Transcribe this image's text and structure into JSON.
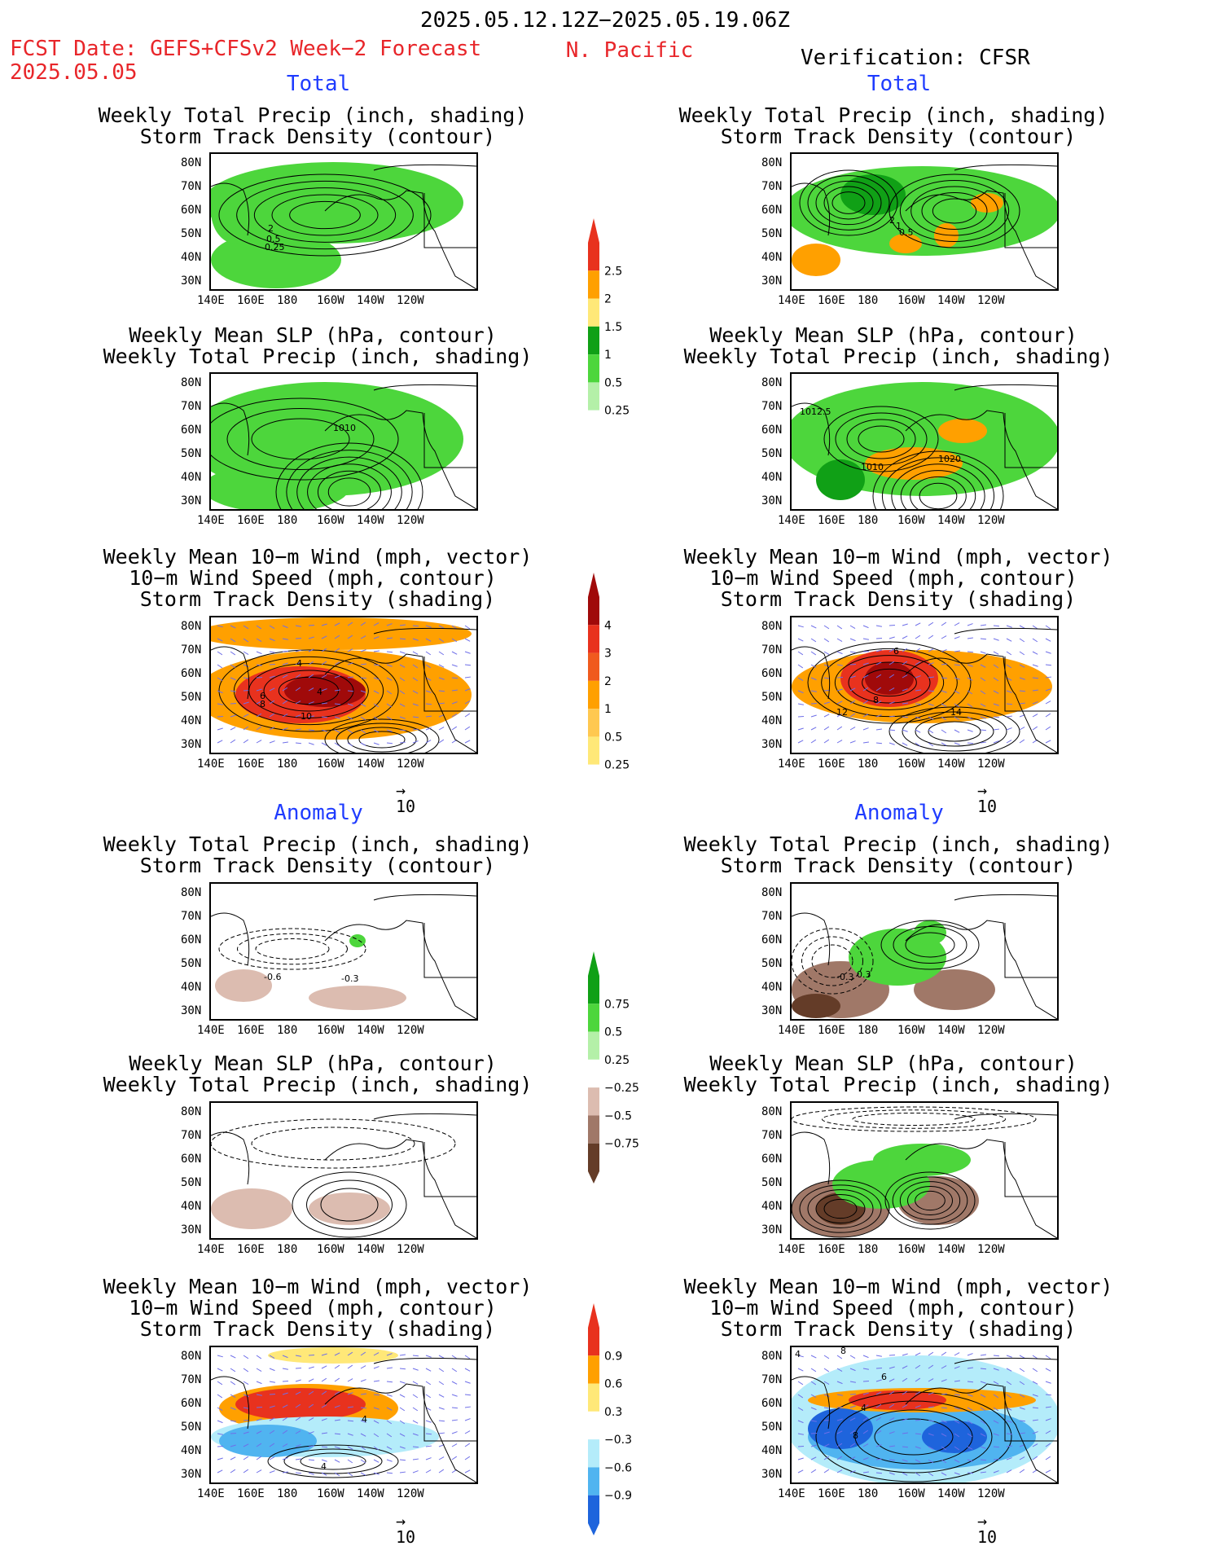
{
  "header": {
    "date_range": "2025.05.12.12Z−2025.05.19.06Z",
    "fcst_label": "FCST Date: GEFS+CFSv2 Week−2 Forecast",
    "fcst_date": "2025.05.05",
    "region": "N. Pacific",
    "verification": "Verification: CFSR"
  },
  "columns": {
    "left_total": "Total",
    "right_total": "Total",
    "left_anom": "Anomaly",
    "right_anom": "Anomaly"
  },
  "panel_titles": {
    "p1": [
      "Weekly Total Precip (inch, shading)",
      "Storm Track Density (contour)"
    ],
    "p2": [
      "Weekly Mean SLP (hPa, contour)",
      "Weekly Total Precip (inch, shading)"
    ],
    "p3": [
      "Weekly Mean 10−m Wind (mph, vector)",
      "10−m Wind Speed (mph, contour)",
      "Storm Track Density (shading)"
    ]
  },
  "lat_labels": [
    "80N",
    "70N",
    "60N",
    "50N",
    "40N",
    "30N"
  ],
  "lon_labels": [
    "140E",
    "160E",
    "180",
    "160W",
    "140W",
    "120W"
  ],
  "vector_ref": "10",
  "contour_labels": {
    "lt_precip": [
      "2",
      "0.5",
      "0.25"
    ],
    "rt_precip": [
      "2",
      "1",
      "0.5"
    ],
    "lt_slp": [
      "1010"
    ],
    "rt_slp": [
      "1012.5",
      "1010",
      "1020"
    ],
    "lt_wind": [
      "4",
      "4",
      "6",
      "8",
      "10"
    ],
    "rt_wind": [
      "6",
      "8",
      "12",
      "14"
    ],
    "la_precip": [
      "-0.6",
      "-0.3"
    ],
    "ra_precip": [
      "-0.3",
      "0.3"
    ],
    "la_wind": [
      "4",
      "4"
    ],
    "ra_wind": [
      "4",
      "8",
      "4",
      "8",
      "6"
    ]
  },
  "colorbars": {
    "precip_total": [
      "2.5",
      "2",
      "1.5",
      "1",
      "0.5",
      "0.25"
    ],
    "storm_total": [
      "4",
      "3",
      "2",
      "1",
      "0.5",
      "0.25"
    ],
    "precip_anom": [
      "0.75",
      "0.5",
      "0.25",
      "−0.25",
      "−0.5",
      "−0.75"
    ],
    "storm_anom": [
      "0.9",
      "0.6",
      "0.3",
      "−0.3",
      "−0.6",
      "−0.9"
    ]
  },
  "colors": {
    "green_light": "#b4f0a8",
    "green_mid": "#4dd63c",
    "green_dark": "#10a016",
    "yellow": "#ffe878",
    "orange": "#ffa000",
    "red": "#e8321e",
    "dark_red": "#a00a0a",
    "brown_light": "#dcbcb0",
    "brown_mid": "#a07868",
    "brown_dark": "#643c28",
    "blue_light": "#b4ecfa",
    "blue_mid": "#50b4f0",
    "blue_dark": "#1e64dc"
  }
}
